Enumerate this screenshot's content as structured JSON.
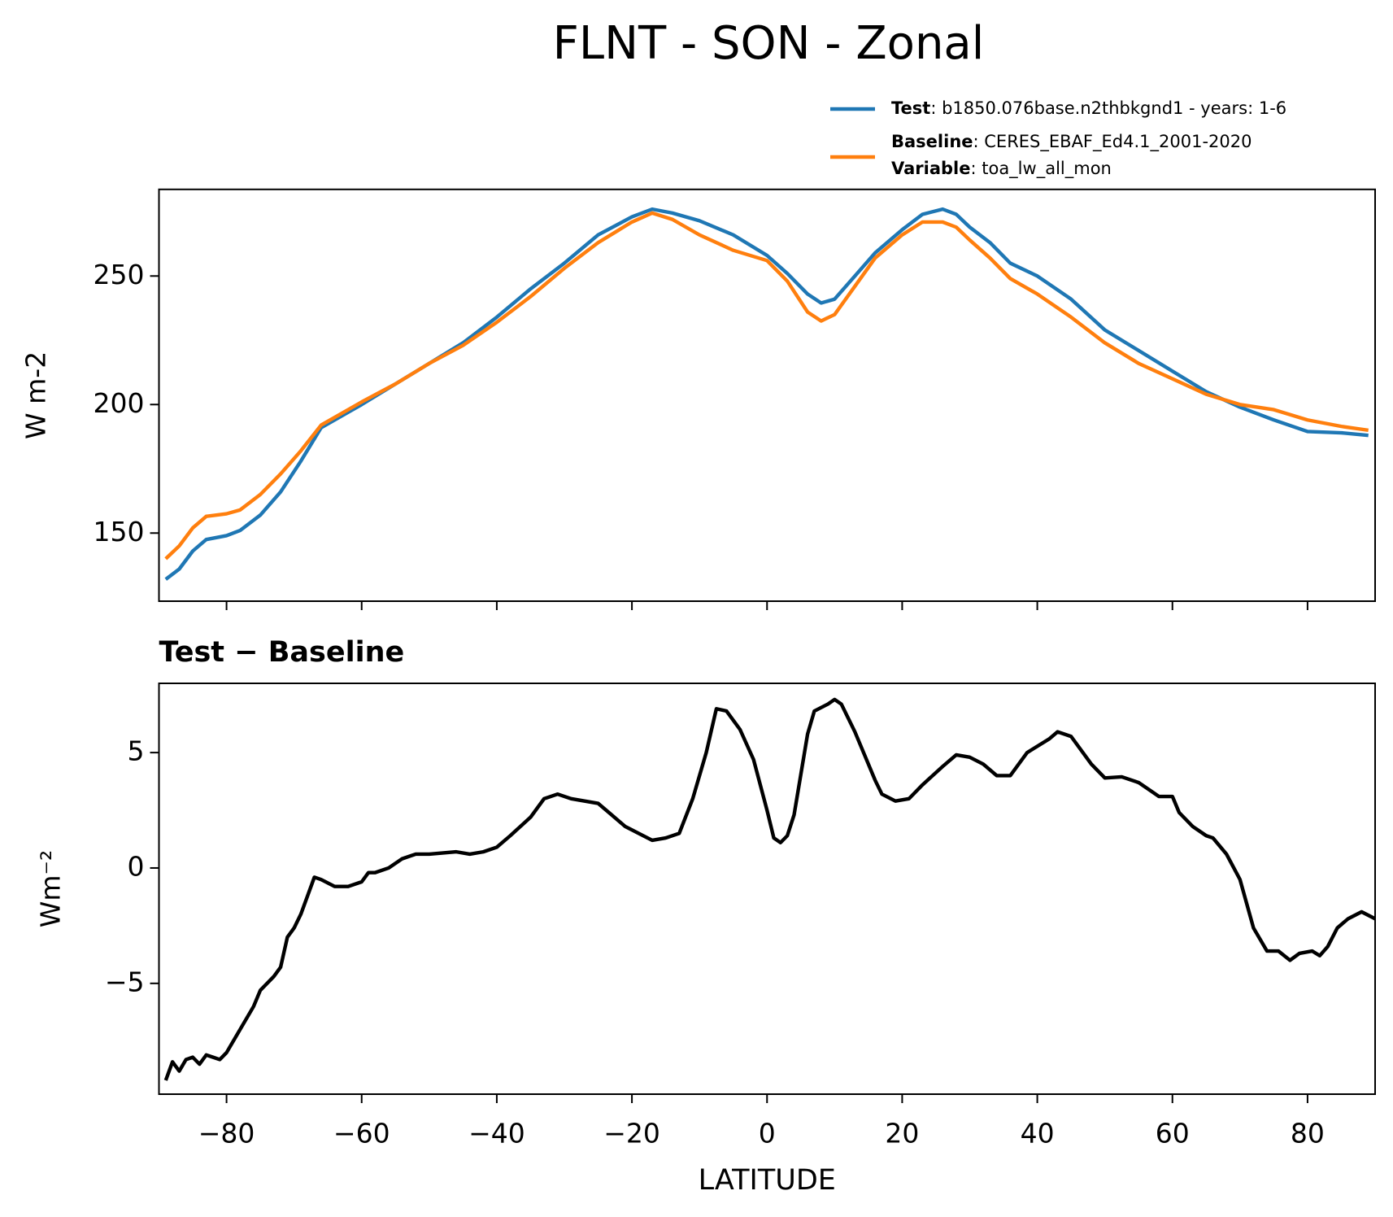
{
  "chart_data": [
    {
      "type": "line",
      "title": "FLNT - SON - Zonal",
      "ylabel": "W m-2",
      "x": [
        -89,
        -87,
        -85,
        -83,
        -80,
        -78,
        -75,
        -72,
        -69,
        -66,
        -60,
        -55,
        -50,
        -45,
        -40,
        -35,
        -30,
        -25,
        -20,
        -17,
        -14,
        -10,
        -5,
        0,
        3,
        6,
        8,
        10,
        13,
        16,
        20,
        23,
        26,
        28,
        30,
        33,
        36,
        40,
        45,
        50,
        55,
        60,
        65,
        70,
        75,
        80,
        85,
        89
      ],
      "series": [
        {
          "name": "Test",
          "description": ": b1850.076base.n2thbkgnd1 - years: 1-6",
          "color": "#1f77b4",
          "values": [
            132,
            136,
            143,
            147.5,
            149,
            151,
            157,
            166,
            178,
            191,
            200,
            208,
            216,
            224,
            234,
            245,
            255,
            266,
            273,
            276,
            274.5,
            271.5,
            266,
            258,
            251,
            243,
            239.5,
            241,
            250,
            259,
            268,
            274,
            276,
            274,
            269,
            263,
            255,
            250,
            241,
            229,
            221,
            213,
            205,
            199,
            194,
            189.5,
            189,
            188
          ]
        },
        {
          "name": "Baseline",
          "description": ": CERES_EBAF_Ed4.1_2001-2020",
          "color": "#ff7f0e",
          "values": [
            140,
            145,
            152,
            156.5,
            157.5,
            159,
            165,
            173,
            182,
            192,
            201,
            208,
            216,
            223,
            232,
            242,
            253,
            263,
            271,
            274.5,
            272,
            266,
            260,
            256,
            248,
            236,
            232.5,
            235,
            246,
            257,
            266,
            271,
            271,
            269,
            264,
            257,
            249,
            243,
            234,
            224,
            216,
            210,
            204,
            200,
            198,
            194,
            191.5,
            190
          ]
        }
      ],
      "legend_extra": {
        "name": "Variable",
        "description": ": toa_lw_all_mon"
      },
      "xlim": [
        -90,
        90
      ],
      "xticks": [
        -80,
        -60,
        -40,
        -20,
        0,
        20,
        40,
        60,
        80
      ],
      "ylim": [
        123.5,
        283.7
      ],
      "yticks": [
        150,
        200,
        250
      ]
    },
    {
      "type": "line",
      "title": "Test − Baseline",
      "xlabel": "LATITUDE",
      "ylabel": "Wm⁻²",
      "color": "#000000",
      "x": [
        -89,
        -88,
        -87,
        -86,
        -85,
        -84,
        -83,
        -82,
        -81,
        -80,
        -78,
        -76,
        -75,
        -73,
        -72,
        -71,
        -70,
        -69,
        -67,
        -66,
        -64,
        -62,
        -60,
        -59,
        -58,
        -56,
        -54,
        -52,
        -50,
        -46,
        -44,
        -42,
        -40,
        -38,
        -35,
        -33,
        -31,
        -29,
        -27,
        -25,
        -23,
        -21,
        -19,
        -17,
        -15,
        -13,
        -11,
        -9,
        -7.5,
        -6,
        -4,
        -2,
        0,
        1,
        2,
        3,
        4,
        6,
        7,
        9,
        10,
        11,
        13,
        16,
        17,
        19,
        21,
        23,
        26,
        28,
        30,
        32,
        34,
        36,
        38.5,
        41.8,
        43,
        45,
        48,
        50,
        52.5,
        55,
        57,
        58,
        60,
        61,
        63,
        65,
        66,
        68,
        70,
        72,
        74,
        75.7,
        77.4,
        78.8,
        80.7,
        81.8,
        83,
        84.4,
        86,
        88,
        90
      ],
      "values": [
        -9.2,
        -8.4,
        -8.8,
        -8.3,
        -8.2,
        -8.5,
        -8.1,
        -8.2,
        -8.3,
        -8.0,
        -7.0,
        -6.0,
        -5.3,
        -4.7,
        -4.3,
        -3.0,
        -2.6,
        -2.0,
        -0.4,
        -0.5,
        -0.8,
        -0.8,
        -0.6,
        -0.2,
        -0.2,
        0.0,
        0.4,
        0.6,
        0.6,
        0.7,
        0.6,
        0.7,
        0.9,
        1.4,
        2.2,
        3.0,
        3.2,
        3.0,
        2.9,
        2.8,
        2.3,
        1.8,
        1.5,
        1.2,
        1.3,
        1.5,
        3.0,
        5.0,
        6.9,
        6.8,
        6.0,
        4.7,
        2.5,
        1.3,
        1.1,
        1.4,
        2.3,
        5.8,
        6.8,
        7.1,
        7.3,
        7.1,
        5.9,
        3.8,
        3.2,
        2.9,
        3.0,
        3.6,
        4.4,
        4.9,
        4.8,
        4.5,
        4.0,
        4.0,
        5.0,
        5.6,
        5.9,
        5.7,
        4.5,
        3.9,
        3.95,
        3.7,
        3.3,
        3.1,
        3.1,
        2.4,
        1.8,
        1.4,
        1.3,
        0.6,
        -0.5,
        -2.6,
        -3.6,
        -3.6,
        -4.0,
        -3.7,
        -3.6,
        -3.8,
        -3.4,
        -2.6,
        -2.2,
        -1.9,
        -2.2
      ],
      "xlim": [
        -90,
        90
      ],
      "xticks": [
        {
          "value": -80,
          "label": "−80"
        },
        {
          "value": -60,
          "label": "−60"
        },
        {
          "value": -40,
          "label": "−40"
        },
        {
          "value": -20,
          "label": "−20"
        },
        0,
        20,
        40,
        60,
        80
      ],
      "ylim": [
        -9.8,
        8.0
      ],
      "yticks": [
        {
          "value": -5,
          "label": "−5"
        },
        0,
        5
      ]
    }
  ]
}
